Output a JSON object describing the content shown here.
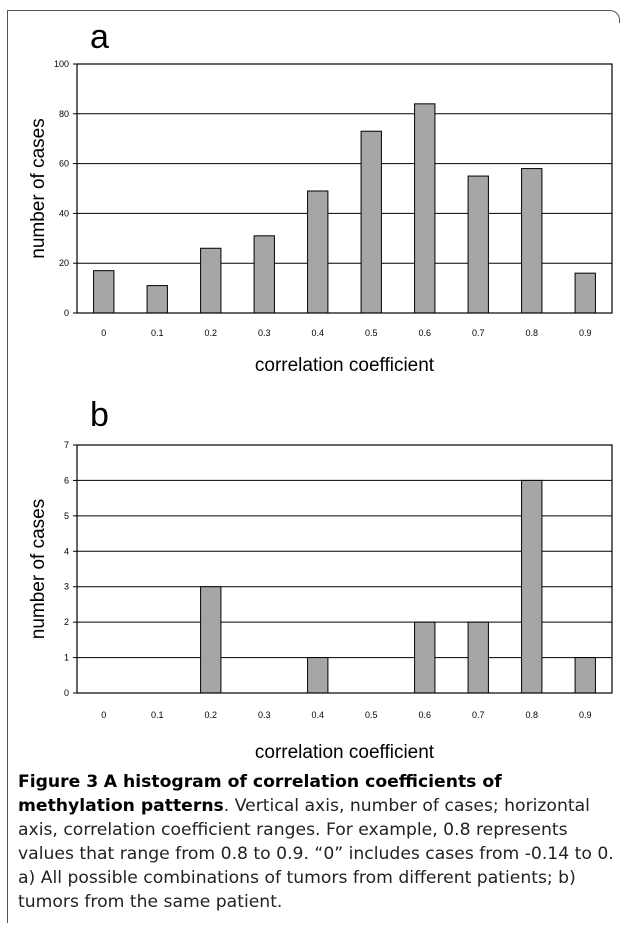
{
  "figure": {
    "caption_label": "Figure 3",
    "caption_title": "A histogram of correlation coefficients of methylation patterns",
    "caption_body": ". Vertical axis, number of cases; horizontal axis, correlation coefficient ranges. For example, 0.8 represents values that range from 0.8 to 0.9. “0” includes cases from -0.14 to 0. a) All possible combinations of tumors from different patients; b) tumors from the same patient."
  },
  "chart_data": [
    {
      "type": "bar",
      "panel": "a",
      "categories": [
        "0",
        "0.1",
        "0.2",
        "0.3",
        "0.4",
        "0.5",
        "0.6",
        "0.7",
        "0.8",
        "0.9"
      ],
      "values": [
        17,
        11,
        26,
        31,
        49,
        73,
        84,
        55,
        58,
        16
      ],
      "xlabel": "correlation coefficient",
      "ylabel": "number of cases",
      "ylim": [
        0,
        100
      ],
      "yticks": [
        "0",
        "20",
        "40",
        "60",
        "80",
        "100"
      ],
      "grid": true,
      "bar_color": "#a6a6a6"
    },
    {
      "type": "bar",
      "panel": "b",
      "categories": [
        "0",
        "0.1",
        "0.2",
        "0.3",
        "0.4",
        "0.5",
        "0.6",
        "0.7",
        "0.8",
        "0.9"
      ],
      "values": [
        0,
        0,
        3,
        0,
        1,
        0,
        2,
        2,
        6,
        1
      ],
      "xlabel": "correlation coefficient",
      "ylabel": "number of cases",
      "ylim": [
        0,
        7
      ],
      "yticks": [
        "0",
        "1",
        "2",
        "3",
        "4",
        "5",
        "6",
        "7"
      ],
      "grid": true,
      "bar_color": "#a6a6a6"
    }
  ]
}
